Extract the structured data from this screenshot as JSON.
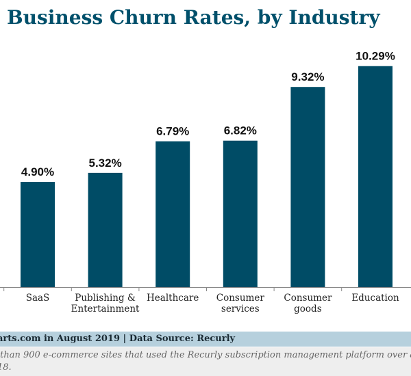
{
  "header": {
    "title": "Business Churn Rates, by Industry"
  },
  "colors": {
    "bar": "#004c66",
    "title": "#00506b",
    "axis": "#888888",
    "label": "#222222",
    "value": "#111111"
  },
  "chart_data": {
    "type": "bar",
    "categories": [
      "SaaS",
      "Publishing &\nEntertainment",
      "Healthcare",
      "Consumer\nservices",
      "Consumer\ngoods",
      "Education"
    ],
    "values": [
      4.9,
      5.32,
      6.79,
      6.82,
      9.32,
      10.29
    ],
    "value_labels": [
      "4.90%",
      "5.32%",
      "6.79%",
      "6.82%",
      "9.32%",
      "10.29%"
    ],
    "title": "Business Churn Rates, by Industry",
    "xlabel": "",
    "ylabel": "",
    "ylim": [
      0,
      12
    ],
    "grid": false,
    "legend": "none"
  },
  "source": {
    "text": "arts.com in August 2019 | Data Source: Recurly"
  },
  "footnote": {
    "line1": " than 900 e-commerce sites that used the Recurly subscription management platform over a",
    "line2": "18."
  }
}
